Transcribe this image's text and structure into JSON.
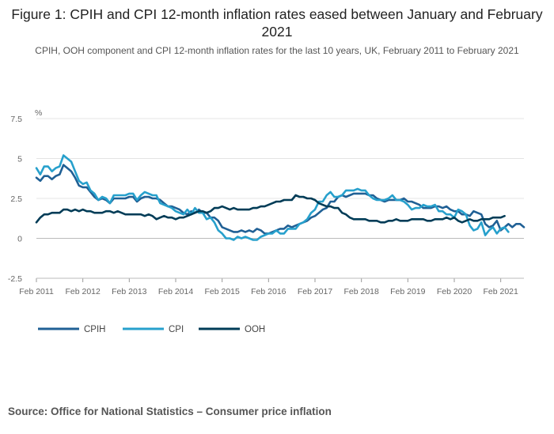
{
  "title": "Figure 1: CPIH and CPI 12-month inflation rates eased between January and February 2021",
  "subtitle": "CPIH, OOH component and CPI 12-month inflation rates for the last 10 years, UK, February 2011 to February 2021",
  "source": "Source: Office for National Statistics – Consumer price inflation",
  "colors": {
    "CPIH": "#206095",
    "CPI": "#27a0cc",
    "OOH": "#003c57",
    "grid": "#e4e4e4",
    "zero": "#bbbbbb"
  },
  "chart_data": {
    "type": "line",
    "ylabel": "%",
    "ylim": [
      -2.5,
      7.5
    ],
    "yticks": [
      7.5,
      5,
      2.5,
      0,
      -2.5
    ],
    "ytick_labels": [
      "7.5",
      "5",
      "2.5",
      "0",
      "-2.5"
    ],
    "xticks": [
      "Feb 2011",
      "Feb 2012",
      "Feb 2013",
      "Feb 2014",
      "Feb 2015",
      "Feb 2016",
      "Feb 2017",
      "Feb 2018",
      "Feb 2019",
      "Feb 2020",
      "Feb 2021"
    ],
    "grid": true,
    "legend": "bottom-left",
    "x_start": "Feb 2011",
    "x_end": "Feb 2021",
    "series": [
      {
        "name": "CPIH",
        "values": [
          3.8,
          3.6,
          3.9,
          3.9,
          3.7,
          3.9,
          4.0,
          4.6,
          4.4,
          4.2,
          3.8,
          3.3,
          3.2,
          3.2,
          2.9,
          2.6,
          2.4,
          2.5,
          2.4,
          2.2,
          2.5,
          2.5,
          2.5,
          2.5,
          2.6,
          2.6,
          2.3,
          2.5,
          2.6,
          2.6,
          2.5,
          2.5,
          2.4,
          2.2,
          2.0,
          2.0,
          1.9,
          1.8,
          1.6,
          1.5,
          1.7,
          1.6,
          1.8,
          1.6,
          1.6,
          1.3,
          1.3,
          1.1,
          0.7,
          0.6,
          0.5,
          0.4,
          0.4,
          0.5,
          0.4,
          0.5,
          0.4,
          0.6,
          0.5,
          0.3,
          0.3,
          0.4,
          0.5,
          0.6,
          0.6,
          0.8,
          0.7,
          0.8,
          0.9,
          1.0,
          1.1,
          1.3,
          1.4,
          1.6,
          1.8,
          1.9,
          2.3,
          2.3,
          2.6,
          2.7,
          2.6,
          2.7,
          2.8,
          2.8,
          2.8,
          2.8,
          2.7,
          2.7,
          2.5,
          2.4,
          2.3,
          2.4,
          2.4,
          2.4,
          2.4,
          2.5,
          2.3,
          2.3,
          2.2,
          2.1,
          1.9,
          1.9,
          1.9,
          2.0,
          2.0,
          1.9,
          2.0,
          1.8,
          1.7,
          1.7,
          1.5,
          1.5,
          1.4,
          1.7,
          1.6,
          1.5,
          0.9,
          0.7,
          0.8,
          1.1,
          0.5,
          0.7,
          0.9,
          0.7,
          0.9,
          0.9,
          0.7
        ],
        "_note": "approximate monthly values Feb 2011 to Feb 2021"
      },
      {
        "name": "CPI",
        "values": [
          4.4,
          4.0,
          4.5,
          4.5,
          4.2,
          4.4,
          4.5,
          5.2,
          5.0,
          4.8,
          4.2,
          3.6,
          3.4,
          3.5,
          3.0,
          2.8,
          2.4,
          2.6,
          2.5,
          2.2,
          2.7,
          2.7,
          2.7,
          2.7,
          2.8,
          2.8,
          2.4,
          2.7,
          2.9,
          2.8,
          2.7,
          2.7,
          2.2,
          2.1,
          2.0,
          1.9,
          1.7,
          1.6,
          1.5,
          1.8,
          1.5,
          1.9,
          1.6,
          1.6,
          1.2,
          1.3,
          1.0,
          0.5,
          0.3,
          0.0,
          0.0,
          -0.1,
          0.1,
          0.0,
          0.1,
          0.0,
          -0.1,
          -0.1,
          0.1,
          0.2,
          0.3,
          0.3,
          0.5,
          0.3,
          0.3,
          0.6,
          0.6,
          0.6,
          0.9,
          1.0,
          1.2,
          1.6,
          1.8,
          2.3,
          2.3,
          2.7,
          2.9,
          2.6,
          2.6,
          2.7,
          3.0,
          3.0,
          3.0,
          3.1,
          3.0,
          3.0,
          2.7,
          2.5,
          2.4,
          2.4,
          2.4,
          2.5,
          2.7,
          2.4,
          2.4,
          2.3,
          2.1,
          1.8,
          1.9,
          1.9,
          2.1,
          2.0,
          2.0,
          2.1,
          1.7,
          1.7,
          1.5,
          1.5,
          1.3,
          1.8,
          1.7,
          1.5,
          0.8,
          0.5,
          0.6,
          1.0,
          0.2,
          0.5,
          0.7,
          0.3,
          0.6,
          0.7,
          0.4
        ],
        "_note": "approximate monthly values Feb 2011 to Feb 2021"
      },
      {
        "name": "OOH",
        "values": [
          1.0,
          1.3,
          1.5,
          1.5,
          1.6,
          1.6,
          1.6,
          1.8,
          1.8,
          1.7,
          1.8,
          1.7,
          1.8,
          1.7,
          1.7,
          1.6,
          1.6,
          1.6,
          1.7,
          1.7,
          1.6,
          1.7,
          1.6,
          1.5,
          1.5,
          1.5,
          1.5,
          1.5,
          1.4,
          1.5,
          1.4,
          1.2,
          1.3,
          1.4,
          1.3,
          1.3,
          1.2,
          1.3,
          1.3,
          1.4,
          1.5,
          1.6,
          1.7,
          1.7,
          1.6,
          1.7,
          1.9,
          1.9,
          2.0,
          1.9,
          1.8,
          1.9,
          1.8,
          1.8,
          1.8,
          1.8,
          1.9,
          1.9,
          2.0,
          2.0,
          2.1,
          2.2,
          2.3,
          2.3,
          2.4,
          2.4,
          2.4,
          2.7,
          2.6,
          2.6,
          2.5,
          2.5,
          2.4,
          2.2,
          2.1,
          2.0,
          2.0,
          1.9,
          1.9,
          1.6,
          1.5,
          1.3,
          1.2,
          1.2,
          1.2,
          1.2,
          1.1,
          1.1,
          1.1,
          1.0,
          1.0,
          1.1,
          1.1,
          1.2,
          1.1,
          1.1,
          1.1,
          1.2,
          1.2,
          1.2,
          1.2,
          1.1,
          1.1,
          1.2,
          1.2,
          1.2,
          1.3,
          1.2,
          1.3,
          1.1,
          1.0,
          1.1,
          1.2,
          1.1,
          1.1,
          1.2,
          1.2,
          1.2,
          1.3,
          1.3,
          1.3,
          1.4
        ],
        "_note": "approximate monthly values Feb 2011 to Feb 2021"
      }
    ]
  }
}
